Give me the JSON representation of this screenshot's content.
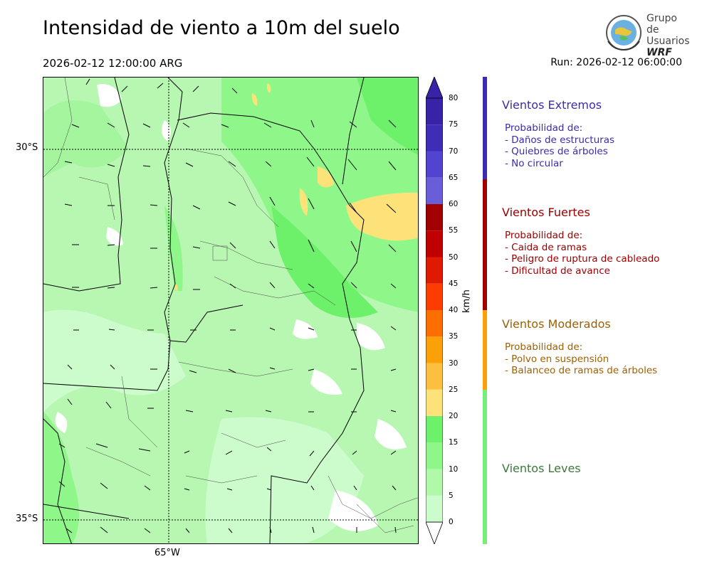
{
  "header": {
    "title": "Intensidad de viento a 10m del suelo",
    "valid_time": "2026-02-12 12:00:00 ARG",
    "run": "Run: 2026-02-12 06:00:00"
  },
  "logo": {
    "line1": "Grupo de",
    "line2": "Usuarios",
    "line3": "WRF",
    "icon": "globe-emblem-icon"
  },
  "map": {
    "lat_labels": [
      "30°S",
      "35°S"
    ],
    "lon_labels": [
      "65°W"
    ]
  },
  "colorbar": {
    "unit": "km/h",
    "ticks": [
      "0",
      "5",
      "10",
      "15",
      "20",
      "25",
      "30",
      "35",
      "40",
      "45",
      "50",
      "55",
      "60",
      "65",
      "70",
      "75",
      "80"
    ],
    "colors": [
      "#ffffff",
      "#ccfccc",
      "#b0f9a9",
      "#8ff78a",
      "#6df06a",
      "#fde27a",
      "#fdbf40",
      "#fca00a",
      "#fc6e00",
      "#fc3c00",
      "#e01a00",
      "#c00000",
      "#a20000",
      "#6a5ed8",
      "#5244d0",
      "#3f2db8",
      "#3823a8"
    ]
  },
  "legend": [
    {
      "title": "Vientos Extremos",
      "body": "Probabilidad de:\n- Daños de estructuras\n- Quiebres de árboles\n- No circular",
      "color": "#3c2bb0",
      "text_color": "#3c2bb0"
    },
    {
      "title": "Vientos Fuertes",
      "body": "Probabilidad de:\n- Caida de ramas\n- Peligro de ruptura de cableado\n- Dificultad de avance",
      "color": "#a00000",
      "text_color": "#a00000"
    },
    {
      "title": "Vientos Moderados",
      "body": "Probabilidad de:\n- Polvo en suspensión\n- Balanceo de ramas de árboles",
      "color": "#fca00a",
      "text_color": "#a06000"
    },
    {
      "title": "Vientos Leves",
      "body": "",
      "color": "#77ee77",
      "text_color": "#3a7a3a"
    }
  ]
}
